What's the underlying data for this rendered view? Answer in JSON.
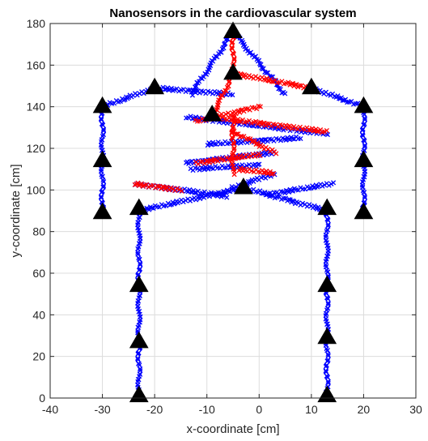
{
  "chart_data": {
    "type": "scatter",
    "title": "Nanosensors in the cardiovascular system",
    "xlabel": "x-coordinate [cm]",
    "ylabel": "y-coordinate [cm]",
    "xlim": [
      -40,
      30
    ],
    "ylim": [
      0,
      180
    ],
    "xticks": [
      -40,
      -30,
      -20,
      -10,
      0,
      10,
      20,
      30
    ],
    "yticks": [
      0,
      20,
      40,
      60,
      80,
      100,
      120,
      140,
      160,
      180
    ],
    "grid": true,
    "legend": "none",
    "colors": {
      "red": "#ff0000",
      "blue": "#0000ff",
      "black": "#000000"
    },
    "series": [
      {
        "marker": "x",
        "color": "#0000ff",
        "segments": [
          [
            [
              -30,
              88
            ],
            [
              -30,
              140
            ]
          ],
          [
            [
              -30,
              140
            ],
            [
              -20,
              149
            ]
          ],
          [
            [
              -20,
              149
            ],
            [
              -5,
              146
            ]
          ],
          [
            [
              -5,
              176
            ],
            [
              -13,
              146
            ]
          ],
          [
            [
              -5,
              176
            ],
            [
              5,
              146
            ]
          ],
          [
            [
              10,
              149
            ],
            [
              20,
              140
            ]
          ],
          [
            [
              20,
              140
            ],
            [
              20,
              88
            ]
          ],
          [
            [
              -23,
              0
            ],
            [
              -23,
              90
            ]
          ],
          [
            [
              13,
              0
            ],
            [
              13,
              90
            ]
          ],
          [
            [
              -23,
              90
            ],
            [
              -3,
              101
            ]
          ],
          [
            [
              -3,
              101
            ],
            [
              13,
              90
            ]
          ],
          [
            [
              -14,
              135
            ],
            [
              13,
              127
            ]
          ],
          [
            [
              -14,
              113
            ],
            [
              3,
              118
            ]
          ],
          [
            [
              -13,
              110
            ],
            [
              0,
              112
            ]
          ],
          [
            [
              -10,
              122
            ],
            [
              8,
              125
            ]
          ],
          [
            [
              -5,
              101
            ],
            [
              3,
              108
            ]
          ],
          [
            [
              -24,
              103
            ],
            [
              -6,
              97
            ]
          ],
          [
            [
              2,
              98
            ],
            [
              14,
              103
            ]
          ]
        ]
      },
      {
        "marker": "x",
        "color": "#ff0000",
        "segments": [
          [
            [
              -5,
              176
            ],
            [
              -5,
              156
            ]
          ],
          [
            [
              -5,
              156
            ],
            [
              -9,
              135
            ]
          ],
          [
            [
              -5,
              156
            ],
            [
              10,
              149
            ]
          ],
          [
            [
              -9,
              135
            ],
            [
              13,
              128
            ]
          ],
          [
            [
              -5,
              136
            ],
            [
              -5,
              108
            ]
          ],
          [
            [
              -5,
              128
            ],
            [
              3,
              118
            ]
          ],
          [
            [
              -12,
              113
            ],
            [
              0,
              117
            ]
          ],
          [
            [
              -4,
              110
            ],
            [
              3,
              108
            ]
          ],
          [
            [
              -12,
              133
            ],
            [
              0,
              140
            ]
          ],
          [
            [
              -24,
              103
            ],
            [
              -15,
              100
            ]
          ]
        ]
      }
    ],
    "markers": {
      "shape": "triangle",
      "color": "#000000",
      "points": [
        [
          -5,
          176
        ],
        [
          -5,
          156
        ],
        [
          -20,
          149
        ],
        [
          10,
          149
        ],
        [
          -30,
          140
        ],
        [
          20,
          140
        ],
        [
          -9,
          136
        ],
        [
          -30,
          114
        ],
        [
          20,
          114
        ],
        [
          -3,
          101
        ],
        [
          -30,
          89
        ],
        [
          20,
          89
        ],
        [
          -23,
          91
        ],
        [
          13,
          91
        ],
        [
          -23,
          54
        ],
        [
          13,
          54
        ],
        [
          -23,
          27
        ],
        [
          13,
          29
        ],
        [
          -23,
          1
        ],
        [
          13,
          1
        ]
      ]
    }
  }
}
